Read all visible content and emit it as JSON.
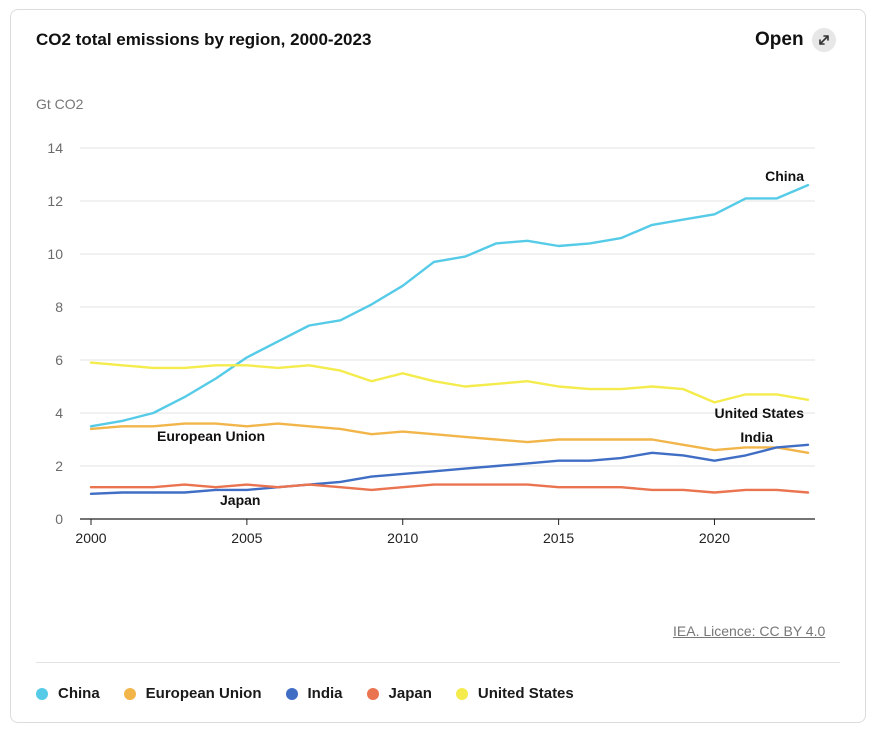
{
  "header": {
    "title": "CO2 total emissions by region, 2000-2023",
    "open_label": "Open",
    "open_icon": "expand-arrows-icon"
  },
  "footer": {
    "source_link": "IEA. Licence: CC BY 4.0"
  },
  "chart_data": {
    "type": "line",
    "title": "CO2 total emissions by region, 2000-2023",
    "xlabel": "",
    "ylabel": "Gt CO2",
    "xlim": [
      2000,
      2023
    ],
    "ylim": [
      0,
      14
    ],
    "yticks": [
      0,
      2,
      4,
      6,
      8,
      10,
      12,
      14
    ],
    "xticks": [
      2000,
      2005,
      2010,
      2015,
      2020
    ],
    "grid": true,
    "legend_position": "bottom",
    "x": [
      2000,
      2001,
      2002,
      2003,
      2004,
      2005,
      2006,
      2007,
      2008,
      2009,
      2010,
      2011,
      2012,
      2013,
      2014,
      2015,
      2016,
      2017,
      2018,
      2019,
      2020,
      2021,
      2022,
      2023
    ],
    "series": [
      {
        "name": "China",
        "color": "#56cbe8",
        "values": [
          3.5,
          3.7,
          4.0,
          4.6,
          5.3,
          6.1,
          6.7,
          7.3,
          7.5,
          8.1,
          8.8,
          9.7,
          9.9,
          10.4,
          10.5,
          10.3,
          10.4,
          10.6,
          11.1,
          11.3,
          11.5,
          12.1,
          12.1,
          12.6
        ]
      },
      {
        "name": "European Union",
        "color": "#f2b54a",
        "values": [
          3.4,
          3.5,
          3.5,
          3.6,
          3.6,
          3.5,
          3.6,
          3.5,
          3.4,
          3.2,
          3.3,
          3.2,
          3.1,
          3.0,
          2.9,
          3.0,
          3.0,
          3.0,
          3.0,
          2.8,
          2.6,
          2.7,
          2.7,
          2.5
        ]
      },
      {
        "name": "India",
        "color": "#3f6ec4",
        "values": [
          0.95,
          1.0,
          1.0,
          1.0,
          1.1,
          1.1,
          1.2,
          1.3,
          1.4,
          1.6,
          1.7,
          1.8,
          1.9,
          2.0,
          2.1,
          2.2,
          2.2,
          2.3,
          2.5,
          2.4,
          2.2,
          2.4,
          2.7,
          2.8
        ]
      },
      {
        "name": "Japan",
        "color": "#ea7350",
        "values": [
          1.2,
          1.2,
          1.2,
          1.3,
          1.2,
          1.3,
          1.2,
          1.3,
          1.2,
          1.1,
          1.2,
          1.3,
          1.3,
          1.3,
          1.3,
          1.2,
          1.2,
          1.2,
          1.1,
          1.1,
          1.0,
          1.1,
          1.1,
          1.0
        ]
      },
      {
        "name": "United States",
        "color": "#f4ec4c",
        "values": [
          5.9,
          5.8,
          5.7,
          5.7,
          5.8,
          5.8,
          5.7,
          5.8,
          5.6,
          5.2,
          5.5,
          5.2,
          5.0,
          5.1,
          5.2,
          5.0,
          4.9,
          4.9,
          5.0,
          4.9,
          4.4,
          4.7,
          4.7,
          4.5
        ]
      }
    ],
    "annotations": [
      {
        "text": "China",
        "series": "China"
      },
      {
        "text": "United States",
        "series": "United States"
      },
      {
        "text": "India",
        "series": "India"
      },
      {
        "text": "European Union",
        "series": "European Union"
      },
      {
        "text": "Japan",
        "series": "Japan"
      }
    ]
  }
}
